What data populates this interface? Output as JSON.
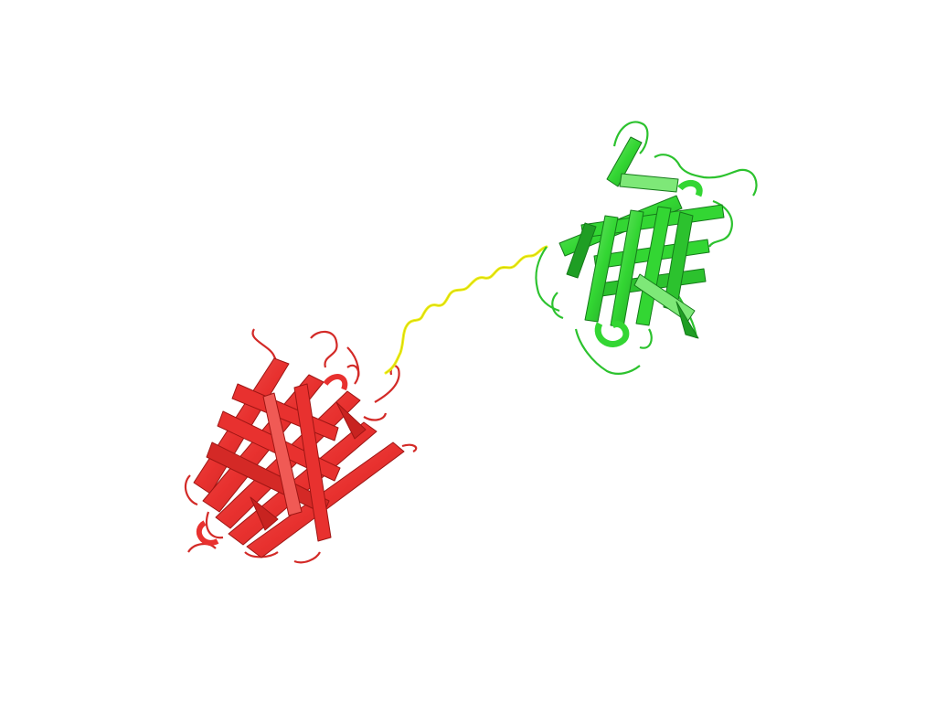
{
  "scene": {
    "background": "#ffffff",
    "domains": [
      {
        "name": "red-barrel",
        "color": "#e8312f",
        "shade": "#b81e1c",
        "highlight": "#f37a73"
      },
      {
        "name": "green-barrel",
        "color": "#33d633",
        "shade": "#1f9e24",
        "highlight": "#8cef84"
      }
    ],
    "linker": {
      "color": "#f2f218",
      "shade": "#c9c90c"
    }
  }
}
